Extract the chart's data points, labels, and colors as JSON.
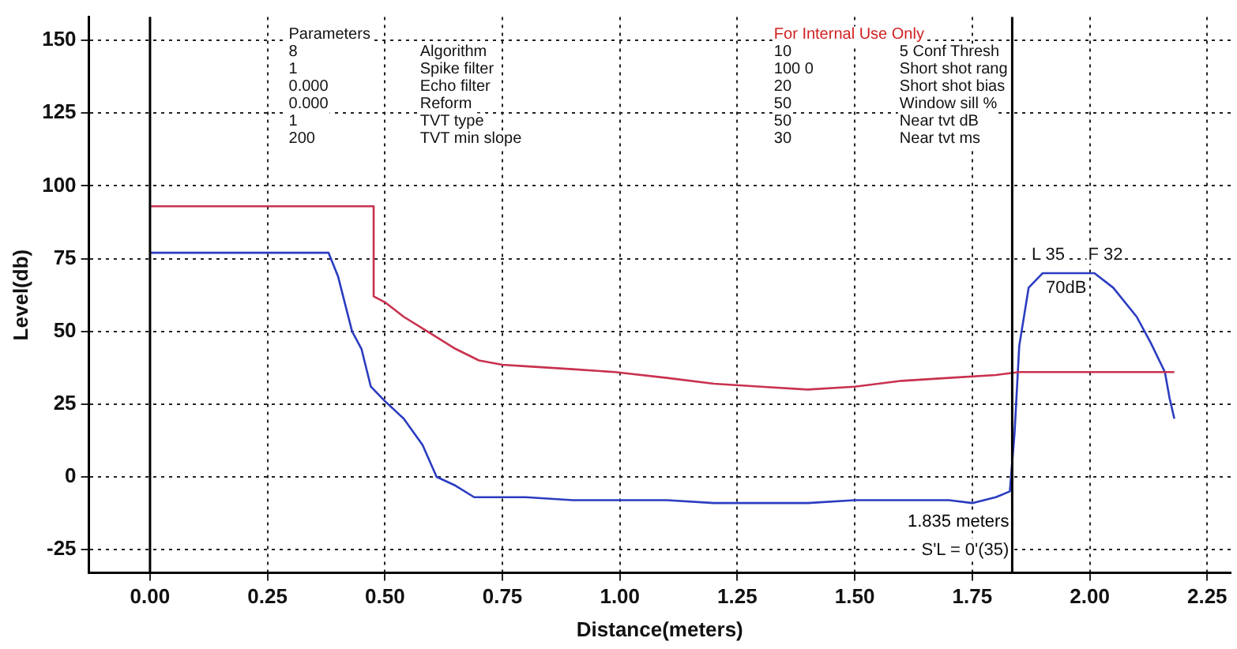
{
  "chart_data": {
    "type": "line",
    "xlabel": "Distance(meters)",
    "ylabel": "Level(db)",
    "xlim": [
      -0.13,
      2.3
    ],
    "ylim": [
      -33,
      158
    ],
    "xticks": [
      {
        "value": 0,
        "label": "0.00"
      },
      {
        "value": 0.25,
        "label": "0.25"
      },
      {
        "value": 0.5,
        "label": "0.50"
      },
      {
        "value": 0.75,
        "label": "0.75"
      },
      {
        "value": 1,
        "label": "1.00"
      },
      {
        "value": 1.25,
        "label": "1.25"
      },
      {
        "value": 1.5,
        "label": "1.50"
      },
      {
        "value": 1.75,
        "label": "1.75"
      },
      {
        "value": 2,
        "label": "2.00"
      },
      {
        "value": 2.25,
        "label": "2.25"
      }
    ],
    "yticks": [
      -25,
      0,
      25,
      50,
      75,
      100,
      125,
      150
    ],
    "grid": true,
    "legend": false,
    "marker": "none",
    "line_style": "solid",
    "series": [
      {
        "color": "#c8324e",
        "x": [
          0,
          0.476,
          0.476,
          0.5,
          0.54,
          0.59,
          0.65,
          0.7,
          0.75,
          0.8,
          0.9,
          0.99,
          1.1,
          1.2,
          1.3,
          1.4,
          1.5,
          1.6,
          1.7,
          1.8,
          1.85,
          2.0,
          2.18
        ],
        "values": [
          93,
          93,
          62,
          60,
          55,
          50,
          44,
          40,
          38.5,
          38,
          37,
          36,
          34,
          32,
          31,
          30,
          31,
          33,
          34,
          35,
          36,
          36,
          36
        ]
      },
      {
        "color": "#2a3cc0",
        "x": [
          0,
          0.38,
          0.4,
          0.43,
          0.45,
          0.47,
          0.5,
          0.54,
          0.58,
          0.61,
          0.65,
          0.69,
          0.75,
          0.8,
          0.9,
          1.0,
          1.1,
          1.2,
          1.3,
          1.4,
          1.5,
          1.6,
          1.7,
          1.75,
          1.8,
          1.83,
          1.84,
          1.85,
          1.87,
          1.9,
          2.01,
          2.05,
          2.1,
          2.13,
          2.16,
          2.17,
          2.18
        ],
        "values": [
          77,
          77,
          69,
          50,
          44,
          31,
          26,
          20,
          11,
          0,
          -3,
          -7,
          -7,
          -7,
          -8,
          -8,
          -8,
          -9,
          -9,
          -9,
          -8,
          -8,
          -8,
          -9,
          -7,
          -5,
          15,
          45,
          65,
          70,
          70,
          65,
          55,
          46,
          36,
          27,
          20
        ]
      }
    ],
    "ref_lines": [
      {
        "axis": "x",
        "value": 0,
        "color": "#000000"
      },
      {
        "axis": "x",
        "value": 1.835,
        "label": "1.835 meters",
        "color": "#000000"
      }
    ],
    "annotations": [
      "Parameters",
      "8",
      "1",
      "0.000",
      "0.000",
      "1",
      "200",
      "Algorithm",
      "Spike filter",
      "Echo filter",
      "Reform",
      "TVT type",
      "TVT min slope",
      "For Internal Use Only",
      "10",
      "100 0",
      "20",
      "50",
      "50",
      "30",
      "5 Conf Thresh",
      "Short shot rang",
      "Short shot bias",
      "Window sill %",
      "Near tvt dB",
      "Near tvt ms",
      {
        "text": "L 35",
        "x": 1.9,
        "y": 70
      },
      {
        "text": "F 32",
        "x": 2.01,
        "y": 70
      },
      {
        "text": "70dB",
        "x": 1.95,
        "y": 70
      },
      {
        "text": "S'L = 0'(35)",
        "x": 1.835,
        "y": -25
      }
    ]
  }
}
